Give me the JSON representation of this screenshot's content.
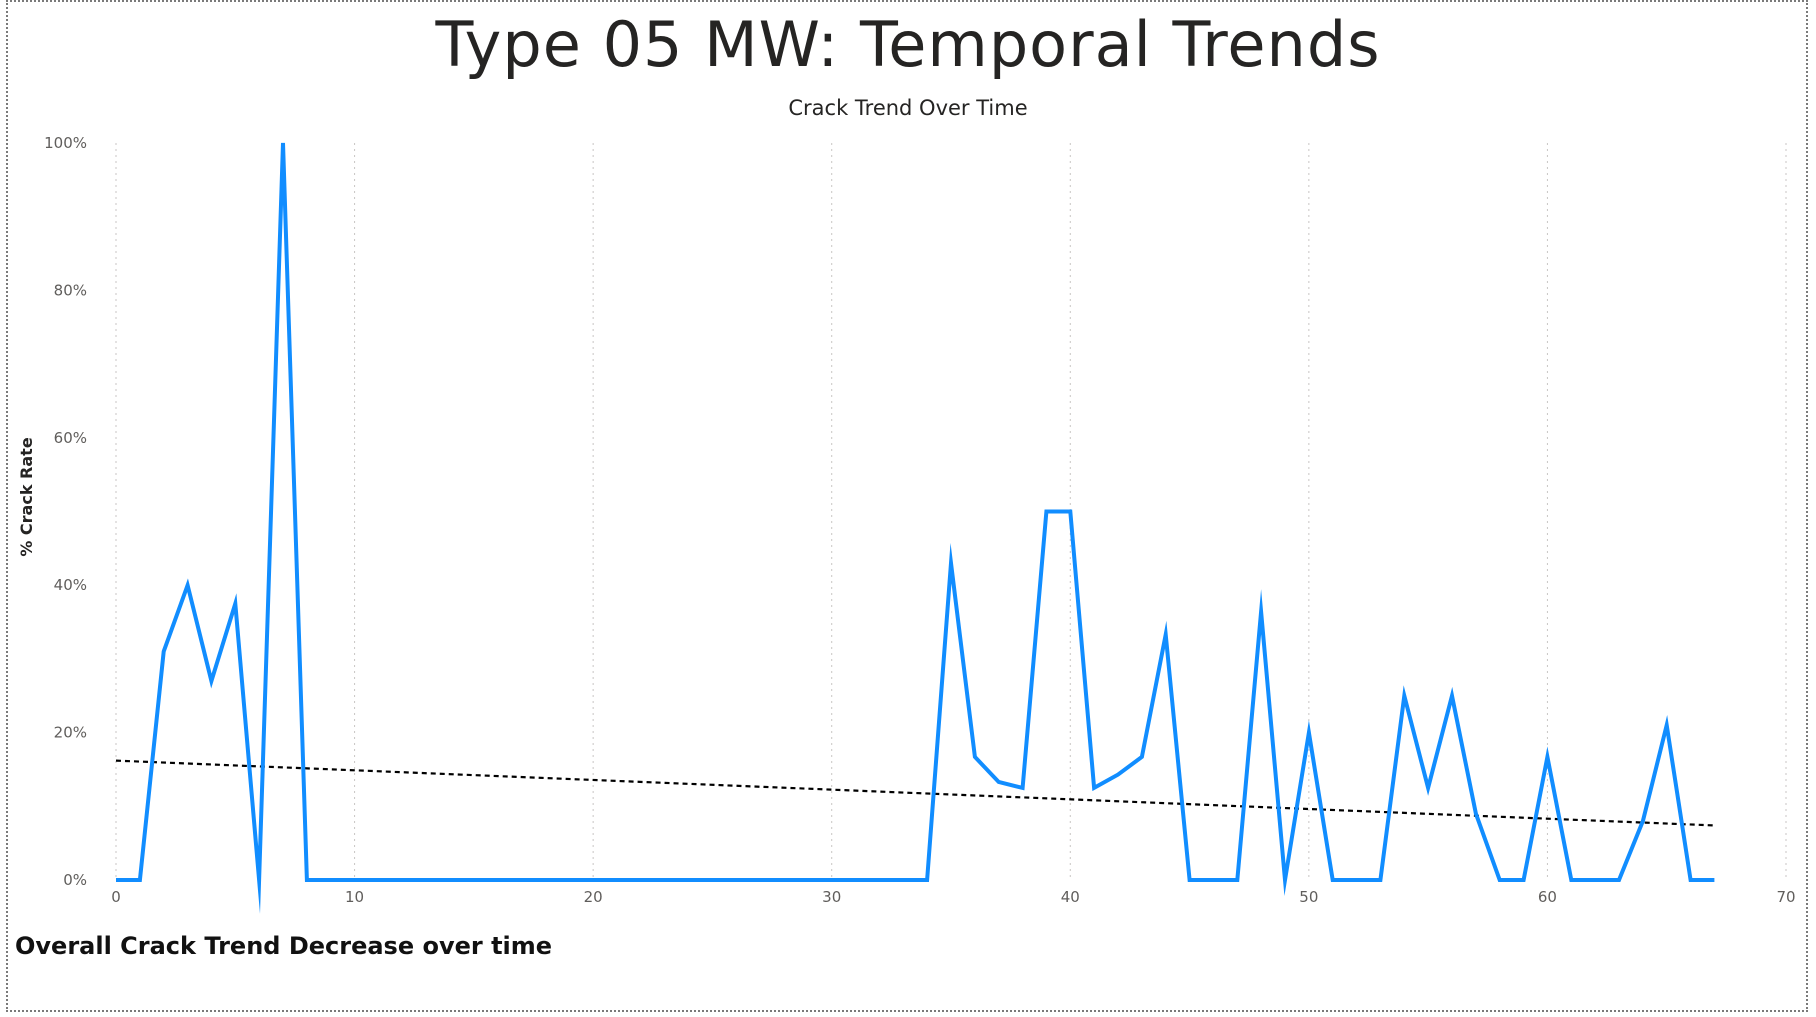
{
  "page": {
    "title": "Type 05 MW: Temporal Trends",
    "footer_note": "Overall Crack Trend Decrease over time"
  },
  "chart_data": {
    "type": "line",
    "title": "Crack Trend Over Time",
    "xlabel": "",
    "ylabel": "% Crack Rate",
    "xlim": [
      0,
      70
    ],
    "ylim": [
      0,
      100
    ],
    "x_ticks": [
      0,
      10,
      20,
      30,
      40,
      50,
      60,
      70
    ],
    "y_ticks": [
      0,
      20,
      40,
      60,
      80,
      100
    ],
    "y_tick_labels": [
      "0%",
      "20%",
      "40%",
      "60%",
      "80%",
      "100%"
    ],
    "grid": "vertical dotted",
    "series": [
      {
        "color": "#118DFF",
        "x": [
          0,
          1,
          2,
          3,
          4,
          5,
          6,
          7,
          8,
          9,
          10,
          11,
          12,
          13,
          14,
          15,
          16,
          17,
          18,
          19,
          20,
          21,
          22,
          23,
          24,
          25,
          26,
          27,
          28,
          29,
          30,
          31,
          32,
          33,
          34,
          35,
          36,
          37,
          38,
          39,
          40,
          41,
          42,
          43,
          44,
          45,
          46,
          47,
          48,
          49,
          50,
          51,
          52,
          53,
          54,
          55,
          56,
          57,
          58,
          59,
          60,
          61,
          62,
          63,
          64,
          65,
          66,
          67
        ],
        "y": [
          0,
          0,
          31,
          40,
          27,
          37.5,
          0,
          100,
          0,
          0,
          0,
          0,
          0,
          0,
          0,
          0,
          0,
          0,
          0,
          0,
          0,
          0,
          0,
          0,
          0,
          0,
          0,
          0,
          0,
          0,
          0,
          0,
          0,
          0,
          0,
          43,
          16.7,
          13.3,
          12.5,
          50,
          50,
          12.5,
          14.3,
          16.7,
          33.3,
          0,
          0,
          0,
          36.4,
          0,
          20,
          0,
          0,
          0,
          25,
          12.5,
          25,
          9,
          0,
          0,
          16.7,
          0,
          0,
          0,
          8,
          21,
          0,
          0
        ]
      }
    ],
    "trendline": {
      "style": "dotted",
      "color": "#000000",
      "x": [
        0,
        67
      ],
      "y": [
        16.2,
        7.4
      ]
    }
  }
}
